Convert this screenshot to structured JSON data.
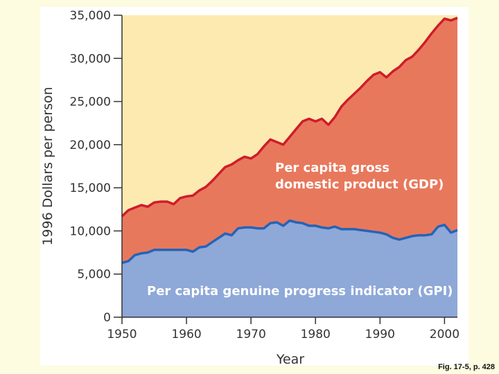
{
  "chart_data": {
    "type": "area",
    "xlabel": "Year",
    "ylabel": "1996 Dollars per person",
    "xlim": [
      1950,
      2002
    ],
    "ylim": [
      0,
      35000
    ],
    "x_ticks": [
      "1950",
      "1960",
      "1970",
      "1980",
      "1990",
      "2000"
    ],
    "x_tick_values": [
      1950,
      1960,
      1970,
      1980,
      1990,
      2000
    ],
    "y_ticks": [
      "0",
      "5,000",
      "10,000",
      "15,000",
      "20,000",
      "25,000",
      "30,000",
      "35,000"
    ],
    "y_tick_values": [
      0,
      5000,
      10000,
      15000,
      20000,
      25000,
      30000,
      35000
    ],
    "grid": false,
    "colors": {
      "background": "#fdeab0",
      "gdp_fill": "#e8785c",
      "gdp_line": "#d01c2c",
      "gpi_fill": "#8ea8d8",
      "gpi_line": "#2464b8",
      "gpi_label": "#ffffff",
      "gdp_label": "#ffffff"
    },
    "series": [
      {
        "name": "Per capita gross domestic product (GDP)",
        "label_line1": "Per capita gross",
        "label_line2": "domestic product (GDP)",
        "x": [
          1950,
          1951,
          1952,
          1953,
          1954,
          1955,
          1956,
          1957,
          1958,
          1959,
          1960,
          1961,
          1962,
          1963,
          1964,
          1965,
          1966,
          1967,
          1968,
          1969,
          1970,
          1971,
          1972,
          1973,
          1974,
          1975,
          1976,
          1977,
          1978,
          1979,
          1980,
          1981,
          1982,
          1983,
          1984,
          1985,
          1986,
          1987,
          1988,
          1989,
          1990,
          1991,
          1992,
          1993,
          1994,
          1995,
          1996,
          1997,
          1998,
          1999,
          2000,
          2001,
          2002
        ],
        "values": [
          11700,
          12400,
          12700,
          13000,
          12800,
          13300,
          13400,
          13400,
          13100,
          13800,
          14000,
          14100,
          14700,
          15100,
          15800,
          16600,
          17400,
          17700,
          18200,
          18600,
          18400,
          18900,
          19800,
          20600,
          20300,
          20000,
          20900,
          21800,
          22700,
          23000,
          22700,
          23000,
          22300,
          23200,
          24400,
          25200,
          25900,
          26600,
          27400,
          28100,
          28400,
          27800,
          28500,
          29000,
          29800,
          30200,
          31000,
          31900,
          32900,
          33800,
          34600,
          34400,
          34700
        ]
      },
      {
        "name": "Per capita genuine progress indicator (GPI)",
        "label_line1": "Per capita genuine progress indicator (GPI)",
        "x": [
          1950,
          1951,
          1952,
          1953,
          1954,
          1955,
          1956,
          1957,
          1958,
          1959,
          1960,
          1961,
          1962,
          1963,
          1964,
          1965,
          1966,
          1967,
          1968,
          1969,
          1970,
          1971,
          1972,
          1973,
          1974,
          1975,
          1976,
          1977,
          1978,
          1979,
          1980,
          1981,
          1982,
          1983,
          1984,
          1985,
          1986,
          1987,
          1988,
          1989,
          1990,
          1991,
          1992,
          1993,
          1994,
          1995,
          1996,
          1997,
          1998,
          1999,
          2000,
          2001,
          2002
        ],
        "values": [
          6300,
          6500,
          7200,
          7400,
          7500,
          7800,
          7800,
          7800,
          7800,
          7800,
          7800,
          7600,
          8100,
          8200,
          8700,
          9200,
          9700,
          9500,
          10300,
          10400,
          10400,
          10300,
          10300,
          10900,
          11000,
          10600,
          11200,
          11000,
          10900,
          10600,
          10600,
          10400,
          10300,
          10500,
          10200,
          10200,
          10200,
          10100,
          10000,
          9900,
          9800,
          9600,
          9200,
          9000,
          9200,
          9400,
          9500,
          9500,
          9600,
          10500,
          10700,
          9800,
          10100
        ]
      }
    ]
  },
  "caption": "Fig. 17-5, p. 428"
}
